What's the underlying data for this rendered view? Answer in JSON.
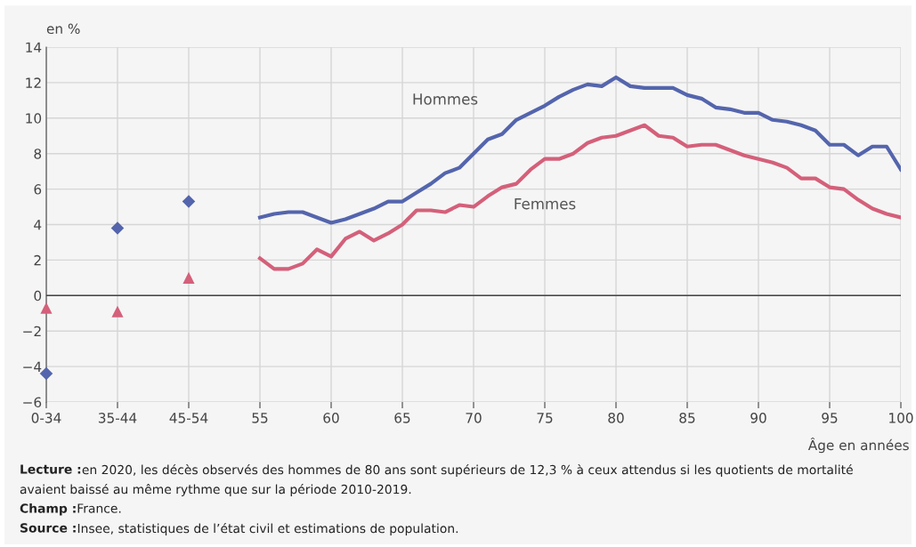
{
  "chart_data": {
    "type": "line",
    "xlabel": "Âge en années",
    "ylabel": "en %",
    "xlim": [
      40,
      100
    ],
    "ylim": [
      -6,
      14
    ],
    "xticks": [
      {
        "value": 40,
        "label": "0-34"
      },
      {
        "value": 45,
        "label": "35-44"
      },
      {
        "value": 50,
        "label": "45-54"
      },
      55,
      60,
      65,
      70,
      75,
      80,
      85,
      90,
      95,
      100
    ],
    "yticks": [
      -6,
      -4,
      -2,
      0,
      2,
      4,
      6,
      8,
      10,
      12,
      14
    ],
    "grid": true,
    "legend": false,
    "line_style": "solid",
    "ref_lines": [
      {
        "axis": "y",
        "value": 0,
        "color": "#444444"
      }
    ],
    "series": [
      {
        "name": "Hommes",
        "color": "#5465ad",
        "x": [
          55,
          56,
          57,
          58,
          59,
          60,
          61,
          62,
          63,
          64,
          65,
          66,
          67,
          68,
          69,
          70,
          71,
          72,
          73,
          74,
          75,
          76,
          77,
          78,
          79,
          80,
          81,
          82,
          83,
          84,
          85,
          86,
          87,
          88,
          89,
          90,
          91,
          92,
          93,
          94,
          95,
          96,
          97,
          98,
          99,
          100
        ],
        "values": [
          4.4,
          4.6,
          4.7,
          4.7,
          4.4,
          4.1,
          4.3,
          4.6,
          4.9,
          5.3,
          5.3,
          5.8,
          6.3,
          6.9,
          7.2,
          8.0,
          8.8,
          9.1,
          9.9,
          10.3,
          10.7,
          11.2,
          11.6,
          11.9,
          11.8,
          12.3,
          11.8,
          11.7,
          11.7,
          11.7,
          11.3,
          11.1,
          10.6,
          10.5,
          10.3,
          10.3,
          9.9,
          9.8,
          9.6,
          9.3,
          8.5,
          8.5,
          7.9,
          8.4,
          8.4,
          7.1
        ]
      },
      {
        "type": "scatter",
        "marker": "diamond",
        "color": "#5465ad",
        "x": [
          40,
          45,
          50
        ],
        "values": [
          -4.4,
          3.8,
          5.3
        ]
      },
      {
        "name": "Femmes",
        "color": "#d4607a",
        "x": [
          55,
          56,
          57,
          58,
          59,
          60,
          61,
          62,
          63,
          64,
          65,
          66,
          67,
          68,
          69,
          70,
          71,
          72,
          73,
          74,
          75,
          76,
          77,
          78,
          79,
          80,
          81,
          82,
          83,
          84,
          85,
          86,
          87,
          88,
          89,
          90,
          91,
          92,
          93,
          94,
          95,
          96,
          97,
          98,
          99,
          100
        ],
        "values": [
          2.1,
          1.5,
          1.5,
          1.8,
          2.6,
          2.2,
          3.2,
          3.6,
          3.1,
          3.5,
          4.0,
          4.8,
          4.8,
          4.7,
          5.1,
          5.0,
          5.6,
          6.1,
          6.3,
          7.1,
          7.7,
          7.7,
          8.0,
          8.6,
          8.9,
          9.0,
          9.3,
          9.6,
          9.0,
          8.9,
          8.4,
          8.5,
          8.5,
          8.2,
          7.9,
          7.7,
          7.5,
          7.2,
          6.6,
          6.6,
          6.1,
          6.0,
          5.4,
          4.9,
          4.6,
          4.4
        ]
      },
      {
        "type": "scatter",
        "marker": "triangle",
        "color": "#d4607a",
        "x": [
          40,
          45,
          50
        ],
        "values": [
          -0.7,
          -0.9,
          1.0
        ]
      }
    ],
    "annotations": [
      "Lecture : en 2020, les décès observés des hommes de 80 ans sont supérieurs de 12,3 % à ceux attendus si les quotients de mortalité avaient baissé au même rythme que sur la période 2010-2019.",
      "Champ : France.",
      "Source : Insee, statistiques de l’état civil et estimations de population."
    ]
  }
}
